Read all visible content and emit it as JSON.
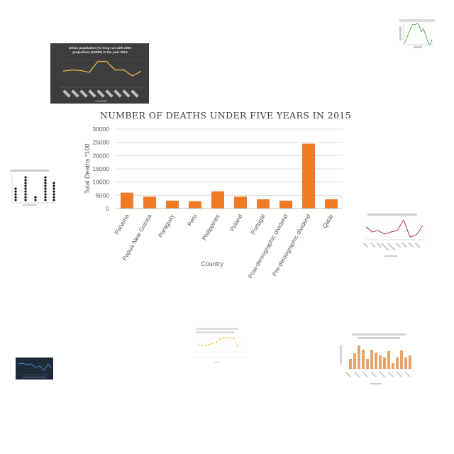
{
  "chart_data": [
    {
      "type": "bar",
      "title": "NUMBER OF DEATHS UNDER FIVE YEARS IN 2015",
      "xlabel": "Country",
      "ylabel": "Total Deaths *100",
      "categories": [
        "Panama",
        "Papua New Guinea",
        "Paraguay",
        "Peru",
        "Philippines",
        "Poland",
        "Portugal",
        "Post-demographic dividend",
        "Pre-demographic dividend",
        "Qatar"
      ],
      "values": [
        6000,
        4500,
        3000,
        2800,
        6500,
        4500,
        3500,
        3000,
        24500,
        3500
      ],
      "yticks": [
        "0",
        "5000",
        "10000",
        "15000",
        "20000",
        "25000",
        "30000"
      ],
      "ylim": [
        0,
        30000
      ],
      "grid": true,
      "colors": {
        "bar": "#f07a25",
        "grid": "#d9d9d9",
        "axis": "#595959"
      }
    },
    {
      "type": "line",
      "title_line1": "Urban population (%) long run with 2050",
      "title_line2": "projections (OWID) in the year 2014",
      "xlabel": "COUNTRY",
      "values": [
        0.55,
        0.6,
        0.58,
        0.5,
        0.95,
        0.95,
        0.6,
        0.6,
        0.35,
        0.55
      ],
      "colors": {
        "background": "#3d3d3d",
        "line": "#f2c14e"
      }
    }
  ]
}
